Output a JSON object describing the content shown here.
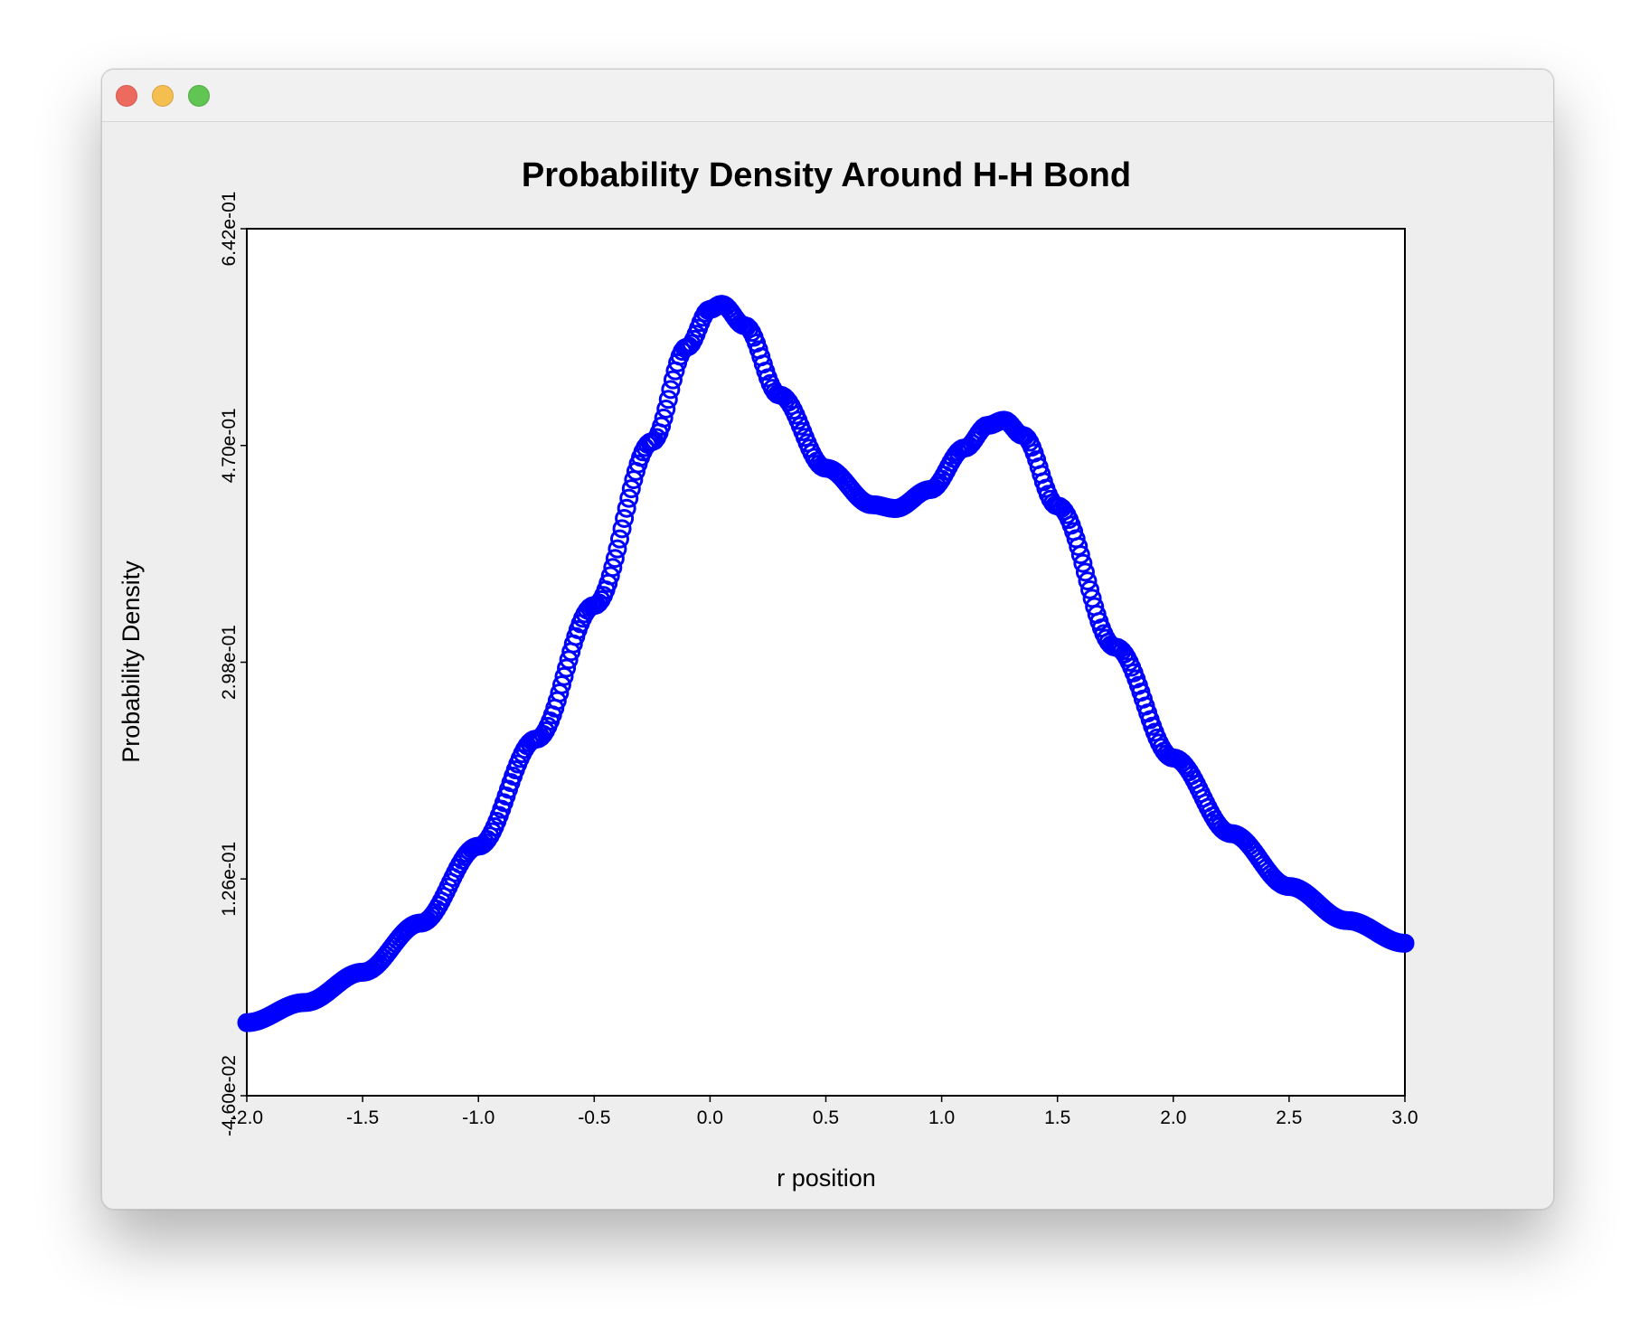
{
  "window": {
    "traffic_lights": {
      "close_color": "#ed6a5e",
      "minimize_color": "#f5bf4f",
      "zoom_color": "#61c554"
    }
  },
  "chart_data": {
    "type": "scatter",
    "title": "Probability Density Around H-H Bond",
    "xlabel": "r position",
    "ylabel": "Probability Density",
    "xlim": [
      -2.0,
      3.0
    ],
    "ylim": [
      -0.046,
      0.642
    ],
    "x_ticks": [
      "-2.0",
      "-1.5",
      "-1.0",
      "-0.5",
      "0.0",
      "0.5",
      "1.0",
      "1.5",
      "2.0",
      "2.5",
      "3.0"
    ],
    "y_ticks": [
      "-4.60e-02",
      "1.26e-01",
      "2.98e-01",
      "4.70e-01",
      "6.42e-01"
    ],
    "grid": false,
    "marker": "open-circle",
    "series": [
      {
        "color": "#0000ff",
        "x": [
          -2.0,
          -1.75,
          -1.5,
          -1.25,
          -1.0,
          -0.75,
          -0.5,
          -0.25,
          -0.1,
          0.0,
          0.05,
          0.15,
          0.3,
          0.5,
          0.7,
          0.8,
          0.95,
          1.1,
          1.2,
          1.27,
          1.35,
          1.5,
          1.75,
          2.0,
          2.25,
          2.5,
          2.75,
          3.0
        ],
        "y": [
          0.012,
          0.028,
          0.052,
          0.091,
          0.152,
          0.237,
          0.343,
          0.473,
          0.548,
          0.578,
          0.582,
          0.565,
          0.51,
          0.452,
          0.423,
          0.42,
          0.435,
          0.468,
          0.486,
          0.49,
          0.478,
          0.422,
          0.31,
          0.222,
          0.162,
          0.12,
          0.093,
          0.075
        ]
      }
    ]
  }
}
